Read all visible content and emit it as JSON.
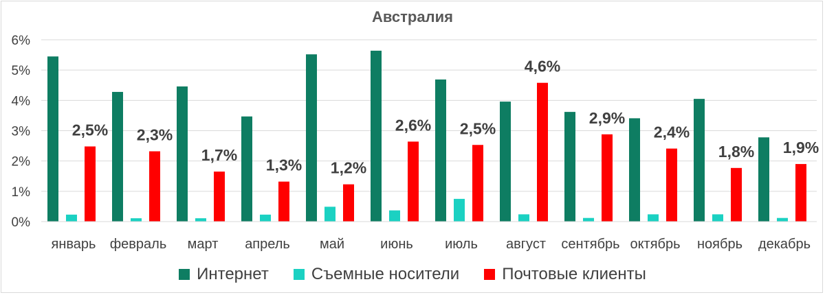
{
  "chart_data": {
    "type": "bar",
    "title": "Австралия",
    "categories": [
      "январь",
      "февраль",
      "март",
      "апрель",
      "май",
      "июнь",
      "июль",
      "август",
      "сентябрь",
      "октябрь",
      "ноябрь",
      "декабрь"
    ],
    "ylim": [
      0,
      6
    ],
    "yticks": [
      "0%",
      "1%",
      "2%",
      "3%",
      "4%",
      "5%",
      "6%"
    ],
    "grid": true,
    "legend_position": "bottom",
    "series": [
      {
        "name": "Интернет",
        "color": "#0e7d62",
        "values": [
          5.45,
          4.28,
          4.46,
          3.47,
          5.52,
          5.64,
          4.69,
          3.96,
          3.62,
          3.41,
          4.05,
          2.78
        ],
        "labels": []
      },
      {
        "name": "Съемные носители",
        "color": "#1bd1c2",
        "values": [
          0.23,
          0.11,
          0.11,
          0.23,
          0.49,
          0.37,
          0.75,
          0.24,
          0.12,
          0.24,
          0.24,
          0.12
        ],
        "labels": []
      },
      {
        "name": "Почтовые клиенты",
        "color": "#ff0000",
        "values": [
          2.48,
          2.32,
          1.65,
          1.32,
          1.23,
          2.64,
          2.53,
          4.58,
          2.88,
          2.41,
          1.77,
          1.9
        ],
        "labels": [
          "2,5%",
          "2,3%",
          "1,7%",
          "1,3%",
          "1,2%",
          "2,6%",
          "2,5%",
          "4,6%",
          "2,9%",
          "2,4%",
          "1,8%",
          "1,9%"
        ]
      }
    ]
  }
}
